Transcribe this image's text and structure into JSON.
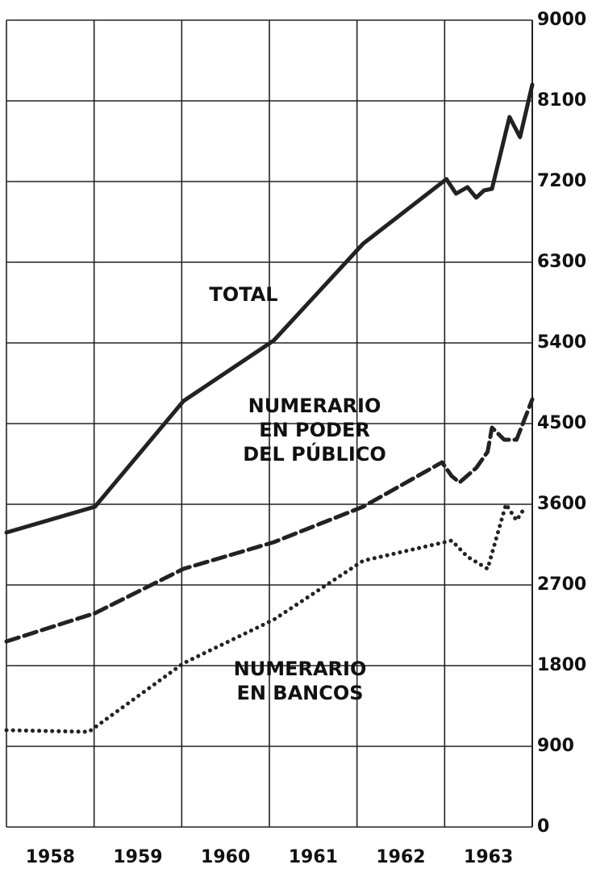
{
  "chart_data": {
    "type": "line",
    "xlim": [
      1958,
      1964
    ],
    "xticks": [
      1958,
      1959,
      1960,
      1961,
      1962,
      1963
    ],
    "ylim": [
      0,
      9000
    ],
    "yticks": [
      0,
      900,
      1800,
      2700,
      3600,
      4500,
      5400,
      6300,
      7200,
      8100,
      9000
    ],
    "grid": true,
    "y_axis_side": "right",
    "annotations": [
      [
        "TOTAL"
      ],
      [
        "NUMERARIO",
        "EN PODER",
        "DEL PÚBLICO"
      ],
      [
        "NUMERARIO",
        "EN BANCOS"
      ]
    ],
    "series": [
      {
        "color": "#222222",
        "style": "solid",
        "x": [
          1958.0,
          1959.01,
          1960.02,
          1961.05,
          1962.07,
          1963.02,
          1963.13,
          1963.26,
          1963.36,
          1963.45,
          1963.54,
          1963.74,
          1963.86,
          1964.0
        ],
        "values": [
          3285,
          3573,
          4752,
          5427,
          6507,
          7227,
          7065,
          7137,
          7020,
          7101,
          7119,
          7920,
          7695,
          8280
        ]
      },
      {
        "color": "#222222",
        "style": "dashed",
        "x": [
          1958.0,
          1959.01,
          1960.02,
          1961.05,
          1962.07,
          1962.97,
          1963.08,
          1963.17,
          1963.36,
          1963.49,
          1963.54,
          1963.68,
          1963.82,
          1964.0
        ],
        "values": [
          2070,
          2385,
          2880,
          3177,
          3573,
          4068,
          3915,
          3843,
          4005,
          4185,
          4455,
          4320,
          4320,
          4770
        ]
      },
      {
        "color": "#222222",
        "style": "dotted",
        "x": [
          1958.0,
          1958.94,
          1960.02,
          1961.05,
          1962.07,
          1963.08,
          1963.26,
          1963.49,
          1963.7,
          1963.82,
          1963.91
        ],
        "values": [
          1080,
          1062,
          1827,
          2313,
          2970,
          3195,
          3015,
          2880,
          3600,
          3420,
          3555
        ]
      }
    ]
  }
}
